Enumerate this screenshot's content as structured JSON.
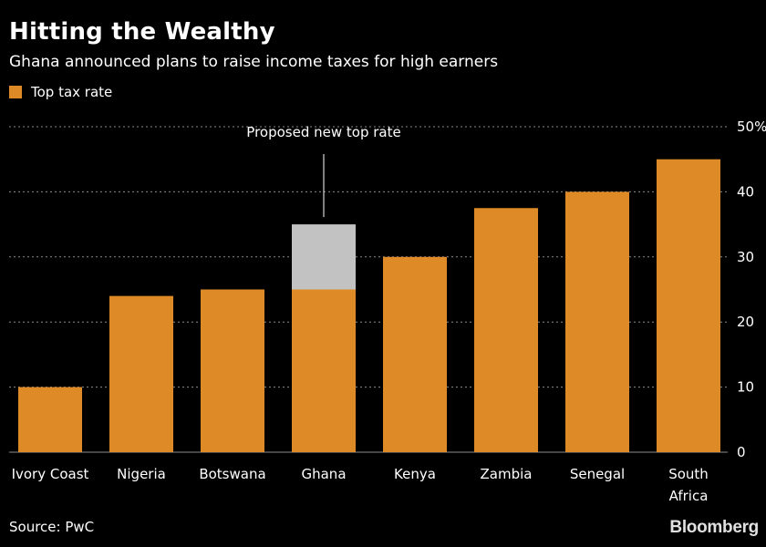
{
  "title": "Hitting the Wealthy",
  "subtitle": "Ghana announced plans to raise income taxes for high earners",
  "source": "Source: PwC",
  "brand": "Bloomberg",
  "colors": {
    "background": "#000000",
    "bar": "#dd8a27",
    "proposed": "#c2c2c2",
    "grid": "#8a8a8a",
    "text": "#ffffff"
  },
  "chart_data": {
    "type": "bar",
    "categories": [
      "Ivory Coast",
      "Nigeria",
      "Botswana",
      "Ghana",
      "Kenya",
      "Zambia",
      "Senegal",
      "South Africa"
    ],
    "category_lines": [
      [
        "Ivory Coast"
      ],
      [
        "Nigeria"
      ],
      [
        "Botswana"
      ],
      [
        "Ghana"
      ],
      [
        "Kenya"
      ],
      [
        "Zambia"
      ],
      [
        "Senegal"
      ],
      [
        "South",
        "Africa"
      ]
    ],
    "series": [
      {
        "name": "Top tax rate",
        "values": [
          10,
          24,
          25,
          25,
          30,
          37.5,
          40,
          45
        ]
      }
    ],
    "proposed": {
      "category": "Ghana",
      "value": 35,
      "label": "Proposed new top rate"
    },
    "ylim": [
      0,
      50
    ],
    "yticks": [
      0,
      10,
      20,
      30,
      40,
      50
    ],
    "ytick_labels": [
      "0",
      "10",
      "20",
      "30",
      "40",
      "50%"
    ],
    "ylabel": "",
    "xlabel": "",
    "axis_side": "right",
    "grid": true,
    "legend": "top-left"
  }
}
